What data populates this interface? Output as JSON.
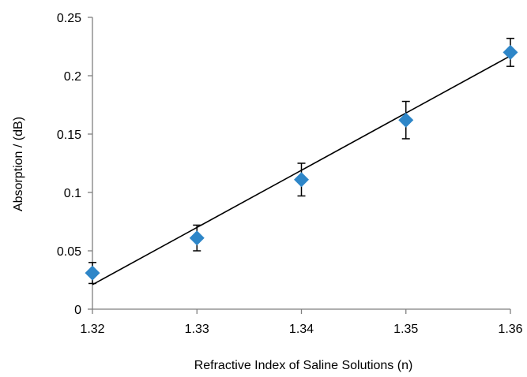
{
  "chart_data": {
    "type": "scatter",
    "title": "",
    "xlabel": "Refractive Index of Saline Solutions (n)",
    "ylabel": "Absorption / (dB)",
    "xlim": [
      1.32,
      1.36
    ],
    "ylim": [
      0,
      0.25
    ],
    "x_ticks": [
      1.32,
      1.33,
      1.34,
      1.35,
      1.36
    ],
    "x_tick_labels": [
      "1.32",
      "1.33",
      "1.34",
      "1.35",
      "1.36"
    ],
    "y_ticks": [
      0,
      0.05,
      0.1,
      0.15,
      0.2,
      0.25
    ],
    "y_tick_labels": [
      "0",
      "0.05",
      "0.1",
      "0.15",
      "0.2",
      "0.25"
    ],
    "grid": false,
    "legend": "none",
    "series": [
      {
        "marker": "diamond",
        "color": "#2E86C8",
        "x": [
          1.32,
          1.33,
          1.34,
          1.35,
          1.36
        ],
        "y": [
          0.031,
          0.061,
          0.111,
          0.162,
          0.22
        ],
        "error": [
          0.009,
          0.011,
          0.014,
          0.016,
          0.012
        ]
      }
    ],
    "trendline": {
      "type": "linear",
      "color": "#000000",
      "x": [
        1.32,
        1.36
      ],
      "y": [
        0.021,
        0.217
      ]
    },
    "axis_color": "#7f7f7f"
  }
}
